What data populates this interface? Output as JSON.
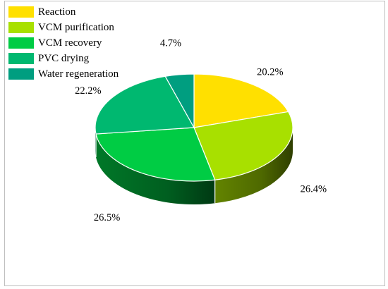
{
  "chart_data": {
    "type": "pie",
    "title": "",
    "style": "3d",
    "legend_position": "top-left",
    "slices": [
      {
        "label": "Reaction",
        "value": 20.2,
        "display": "20.2%",
        "color": "#ffe000"
      },
      {
        "label": "VCM purification",
        "value": 26.4,
        "display": "26.4%",
        "color": "#a8e000"
      },
      {
        "label": "VCM recovery",
        "value": 26.5,
        "display": "26.5%",
        "color": "#00cc44"
      },
      {
        "label": "PVC drying",
        "value": 22.2,
        "display": "22.2%",
        "color": "#00b870"
      },
      {
        "label": "Water regeneration",
        "value": 4.7,
        "display": "4.7%",
        "color": "#009e80"
      }
    ]
  }
}
